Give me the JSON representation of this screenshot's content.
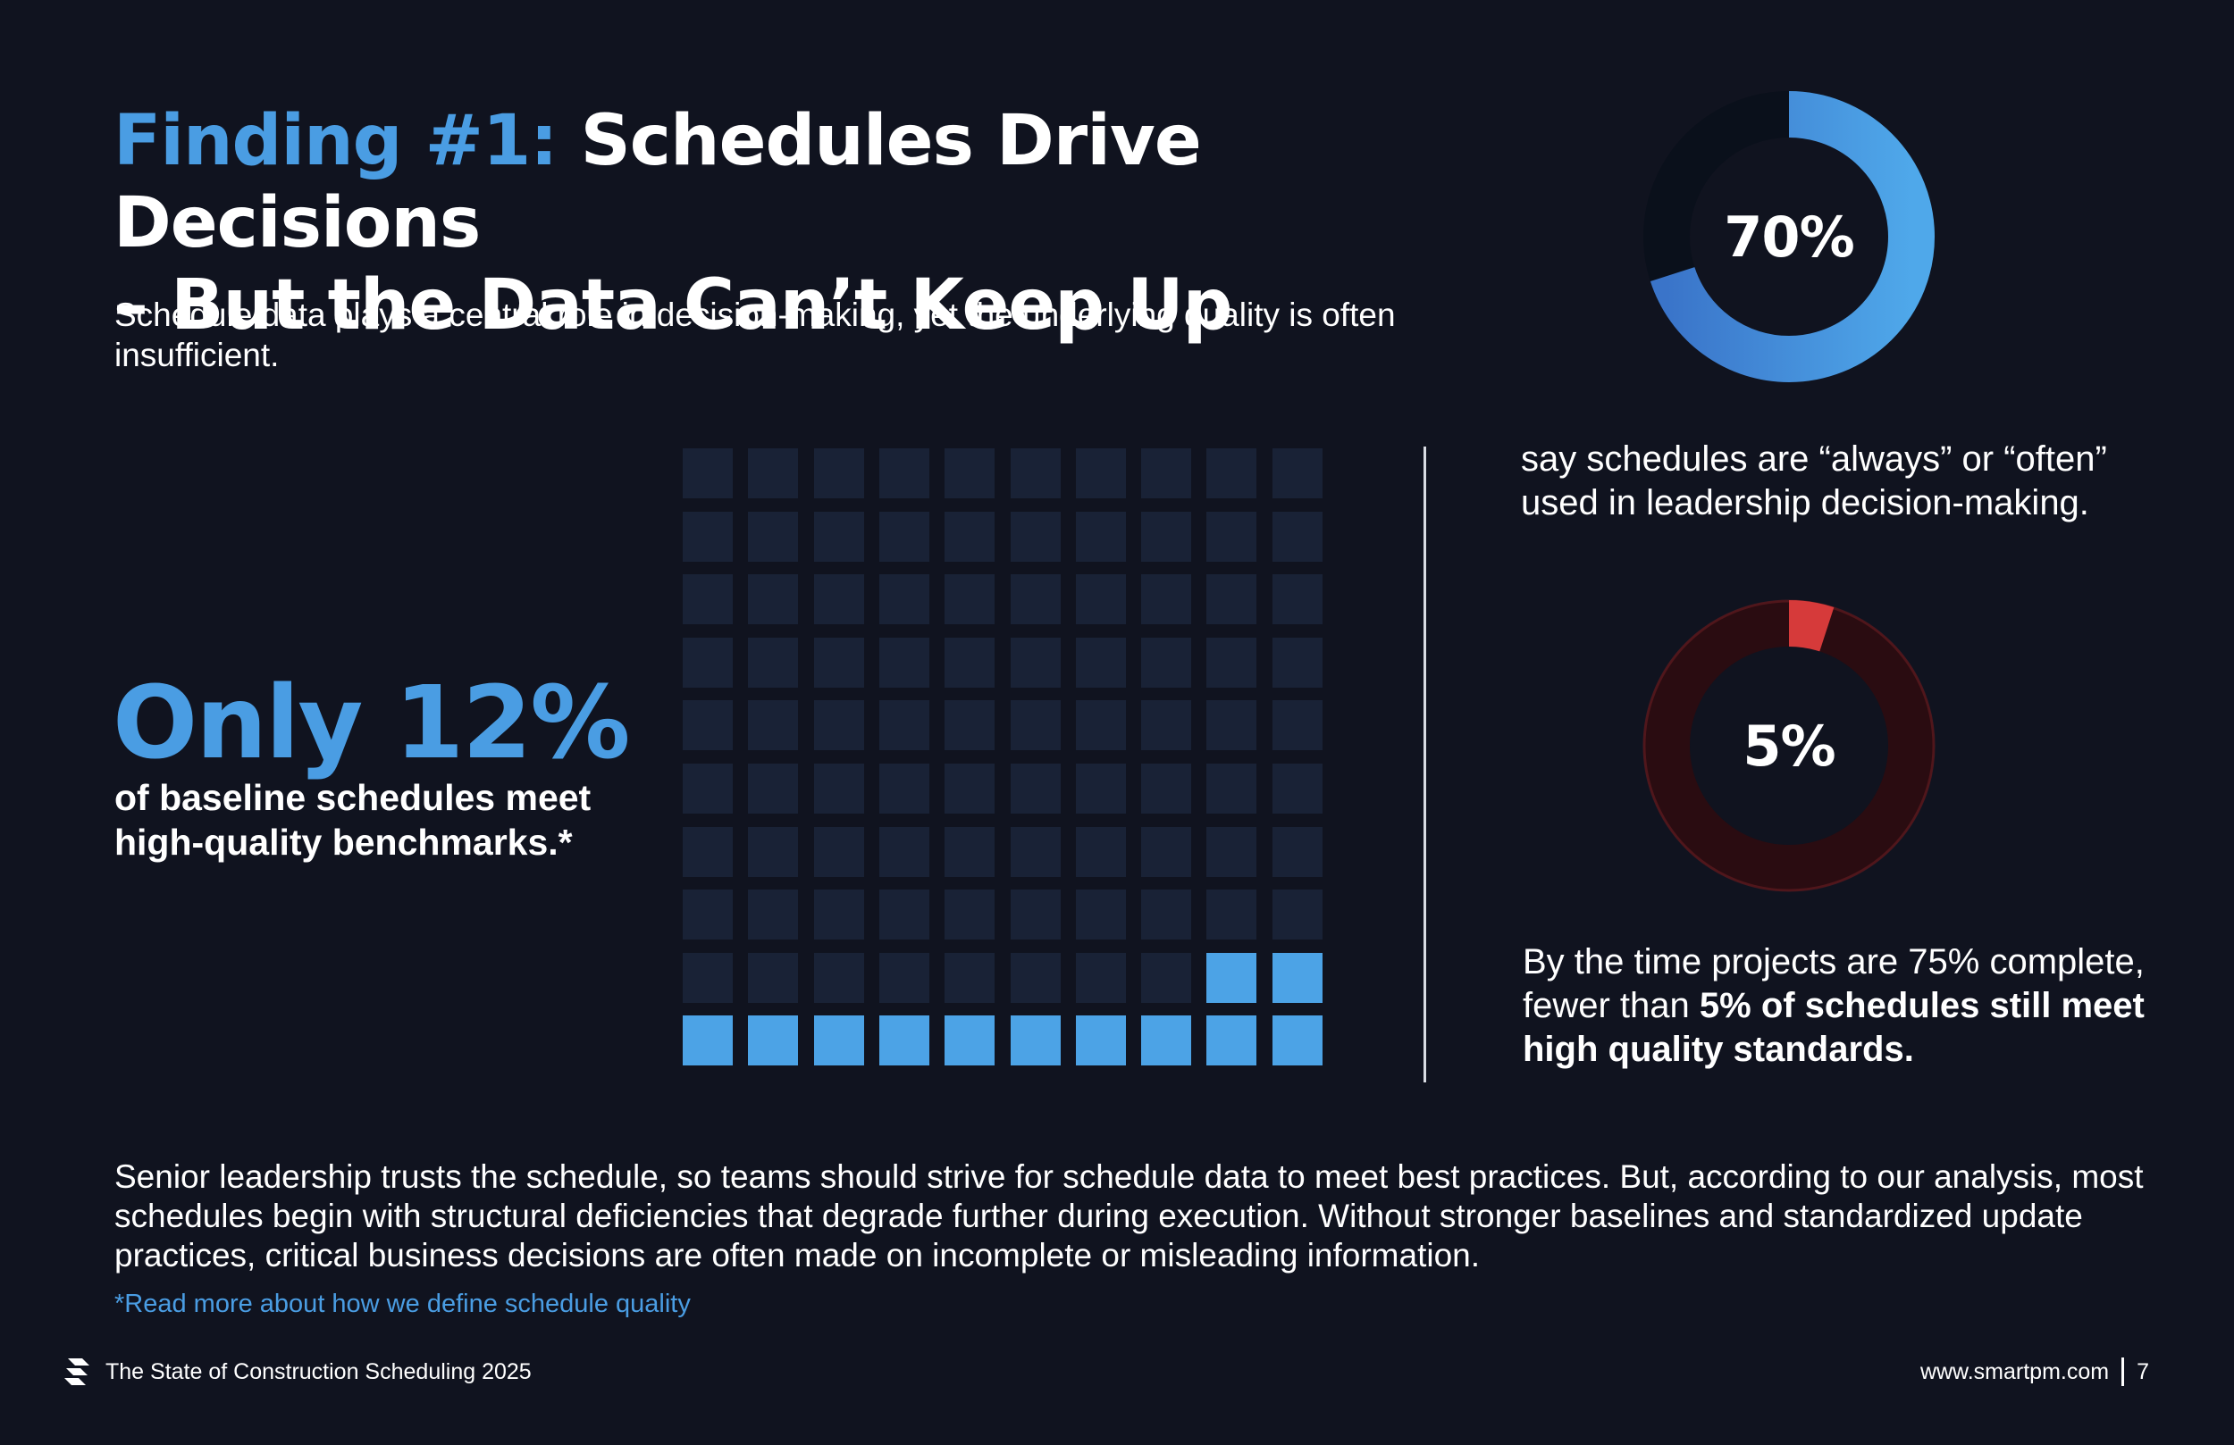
{
  "title": {
    "accent": "Finding #1:",
    "line1_rest": " Schedules Drive Decisions",
    "line2": "– But the Data Can’t Keep Up"
  },
  "intro": "Schedule data plays a central role in decision-making, yet the underlying quality is often insufficient.",
  "stat": {
    "value": "Only 12%",
    "description": "of baseline schedules meet high-quality benchmarks.*"
  },
  "chart_data": [
    {
      "type": "waffle",
      "title": "Only 12%",
      "total": 100,
      "filled": 12,
      "rows": 10,
      "columns": 10,
      "filled_color": "#4ca3e6",
      "empty_color": "#192236"
    },
    {
      "type": "pie",
      "title": "70%",
      "values": [
        70,
        30
      ],
      "colors": [
        "#4a9de3",
        "#0b1220"
      ]
    },
    {
      "type": "pie",
      "title": "5%",
      "values": [
        5,
        95
      ],
      "colors": [
        "#d63a3a",
        "#250c10"
      ]
    }
  ],
  "donut70": {
    "label": "70%",
    "caption": "say schedules are “always” or “often” used in leadership decision-making."
  },
  "donut5": {
    "label": "5%",
    "caption_plain": "By the time projects are 75% complete, fewer than ",
    "caption_bold": "5% of schedules still meet high quality standards."
  },
  "body": "Senior leadership trusts the schedule, so teams should strive for schedule data to meet best practices. But, according to our analysis, most schedules begin with structural deficiencies that degrade further during execution. Without stronger baselines and standardized update practices, critical business decisions are often made on incomplete or misleading information.",
  "footnote_link": "*Read more about how we define schedule quality",
  "footer": {
    "logo_icon": "smartpm-logo-icon",
    "report_title": "The State of Construction Scheduling 2025",
    "website": "www.smartpm.com",
    "page_number": "7"
  }
}
